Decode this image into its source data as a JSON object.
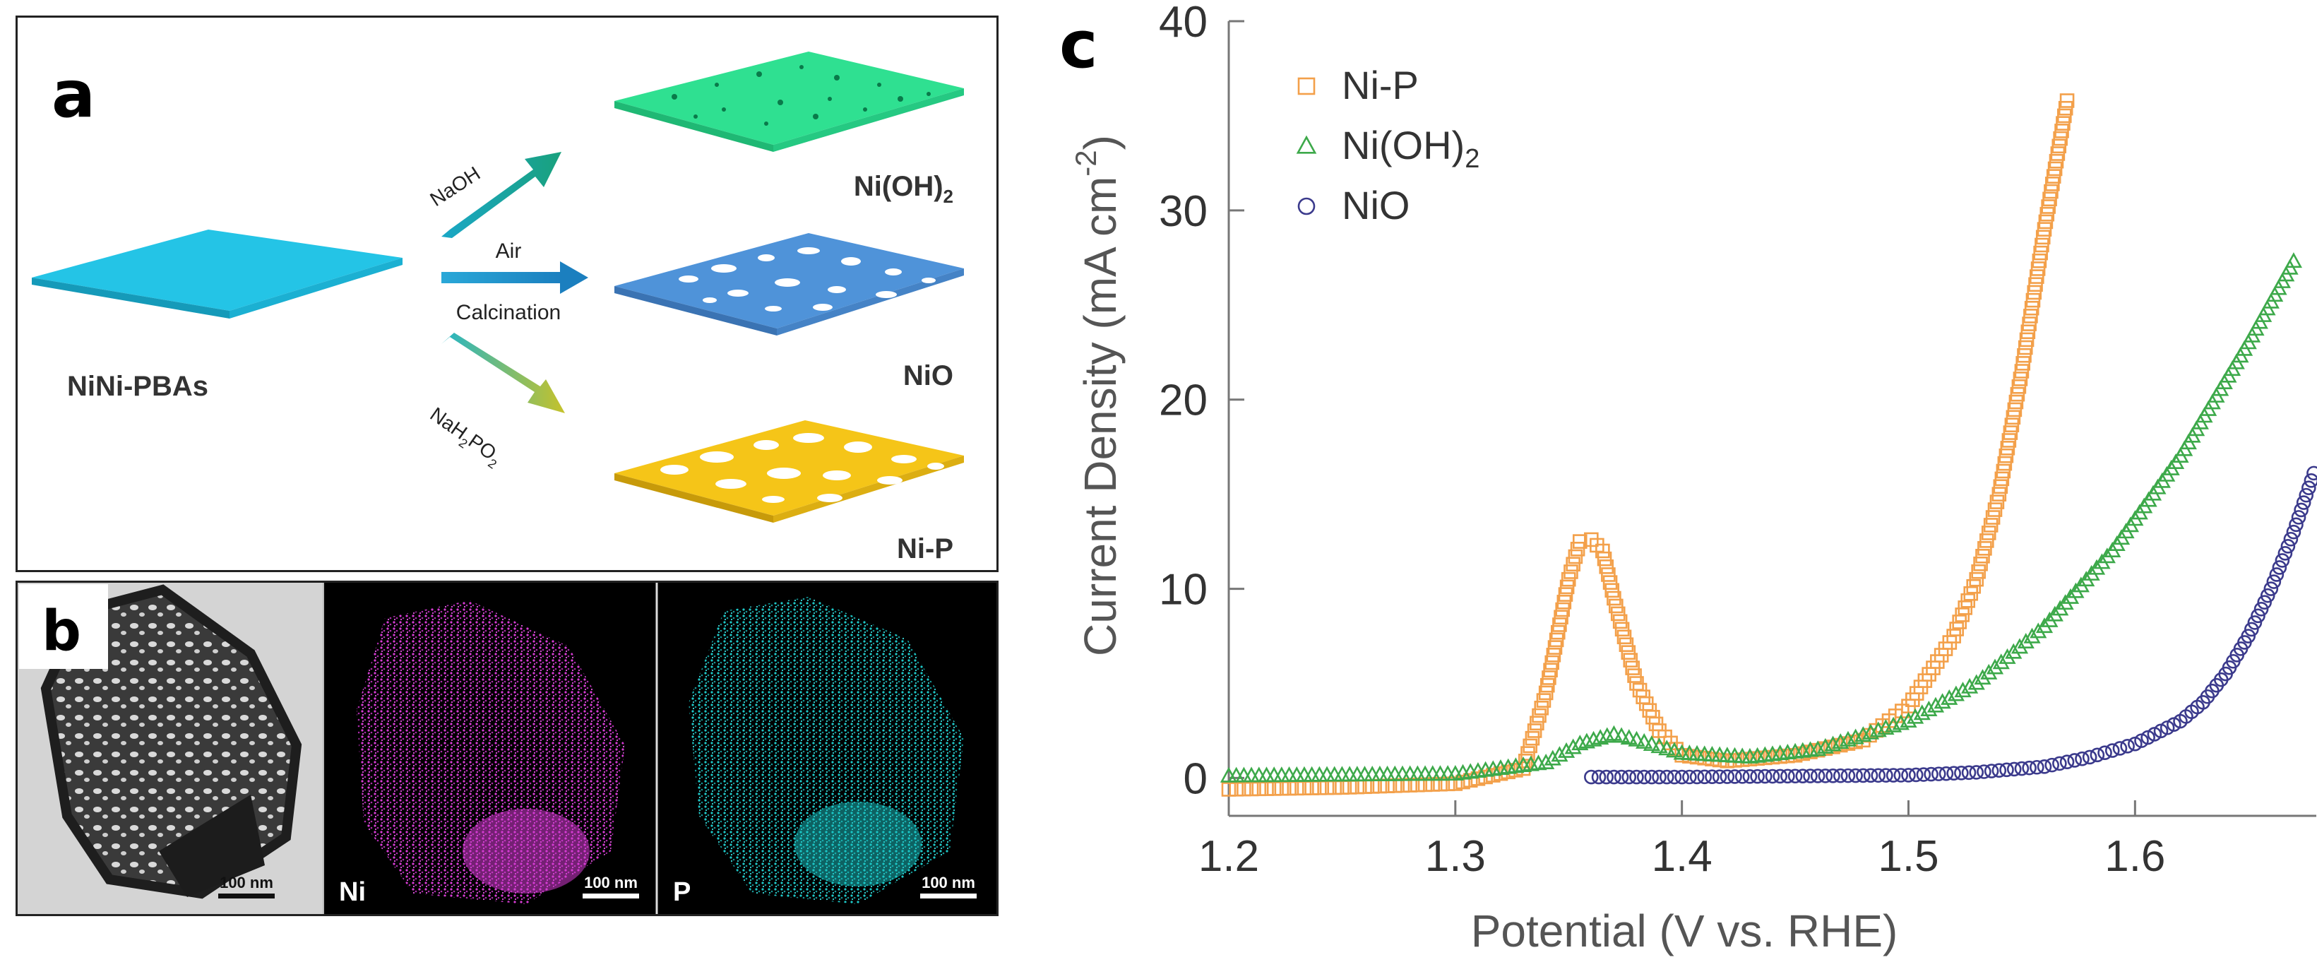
{
  "panel_a": {
    "letter": "a",
    "precursor_label": "NiNi-PBAs",
    "routes": [
      {
        "reagent": "NaOH",
        "product": "Ni(OH)",
        "product_sub": "2",
        "sheet_color": "#2fe091",
        "arrow_color": "#1aa79a"
      },
      {
        "reagent_top": "Air",
        "reagent_bottom": "Calcination",
        "product": "NiO",
        "sheet_color": "#4f93d9",
        "arrow_color": "#1b94c2"
      },
      {
        "reagent_prefix": "NaH",
        "reagent_sub1": "2",
        "reagent_mid": "PO",
        "reagent_sub2": "2",
        "product": "Ni-P",
        "sheet_color": "#f5c518",
        "arrow_color": "#7fb23a"
      }
    ],
    "precursor_color": "#24c4e6"
  },
  "panel_b": {
    "letter": "b",
    "images": [
      {
        "label": "",
        "scale": "100 nm",
        "kind": "tem"
      },
      {
        "label": "Ni",
        "scale": "100 nm",
        "kind": "map",
        "color": "#e23fe0"
      },
      {
        "label": "P",
        "scale": "100 nm",
        "kind": "map",
        "color": "#1fd3d3"
      }
    ]
  },
  "chart_data": {
    "type": "scatter",
    "panel_letter": "c",
    "xlabel": "Potential (V vs. RHE)",
    "ylabel_main": "Current Density (mA cm",
    "ylabel_sup": "-2",
    "ylabel_close": ")",
    "xlim": [
      1.2,
      1.68
    ],
    "ylim": [
      -2,
      40
    ],
    "xticks": [
      "1.2",
      "1.3",
      "1.4",
      "1.5",
      "1.6"
    ],
    "xtick_values": [
      1.2,
      1.3,
      1.4,
      1.5,
      1.6
    ],
    "yticks": [
      "0",
      "10",
      "20",
      "30",
      "40"
    ],
    "ytick_values": [
      0,
      10,
      20,
      30,
      40
    ],
    "legend_position": "top-left",
    "series": [
      {
        "name": "Ni-P",
        "name_sub": "",
        "marker": "square",
        "color": "#f3a04a",
        "x": [
          1.2,
          1.25,
          1.3,
          1.33,
          1.34,
          1.35,
          1.355,
          1.36,
          1.365,
          1.37,
          1.38,
          1.39,
          1.4,
          1.42,
          1.45,
          1.48,
          1.5,
          1.52,
          1.53,
          1.54,
          1.55,
          1.56,
          1.57
        ],
        "y": [
          -0.6,
          -0.5,
          -0.3,
          0.5,
          4.5,
          10.5,
          12.5,
          12.6,
          12.0,
          9.5,
          5.0,
          2.5,
          1.2,
          0.9,
          1.2,
          2.0,
          3.8,
          7.5,
          10.5,
          15.0,
          21.5,
          29.0,
          35.8
        ]
      },
      {
        "name": "Ni(OH)",
        "name_sub": "2",
        "marker": "triangle",
        "color": "#3da94a",
        "x": [
          1.2,
          1.25,
          1.3,
          1.34,
          1.355,
          1.37,
          1.38,
          1.4,
          1.43,
          1.46,
          1.5,
          1.53,
          1.56,
          1.59,
          1.62,
          1.65,
          1.67
        ],
        "y": [
          0.1,
          0.15,
          0.2,
          0.8,
          1.8,
          2.3,
          2.0,
          1.3,
          1.1,
          1.5,
          3.0,
          5.0,
          8.0,
          12.0,
          17.0,
          23.0,
          27.3
        ]
      },
      {
        "name": "NiO",
        "name_sub": "",
        "marker": "circle",
        "color": "#3b3a8c",
        "x": [
          1.36,
          1.4,
          1.45,
          1.5,
          1.53,
          1.56,
          1.58,
          1.6,
          1.62,
          1.63,
          1.64,
          1.65,
          1.66,
          1.67,
          1.68
        ],
        "y": [
          0.05,
          0.05,
          0.1,
          0.15,
          0.3,
          0.6,
          1.1,
          1.8,
          3.0,
          4.0,
          5.5,
          7.5,
          10.0,
          13.0,
          16.5
        ]
      }
    ]
  }
}
